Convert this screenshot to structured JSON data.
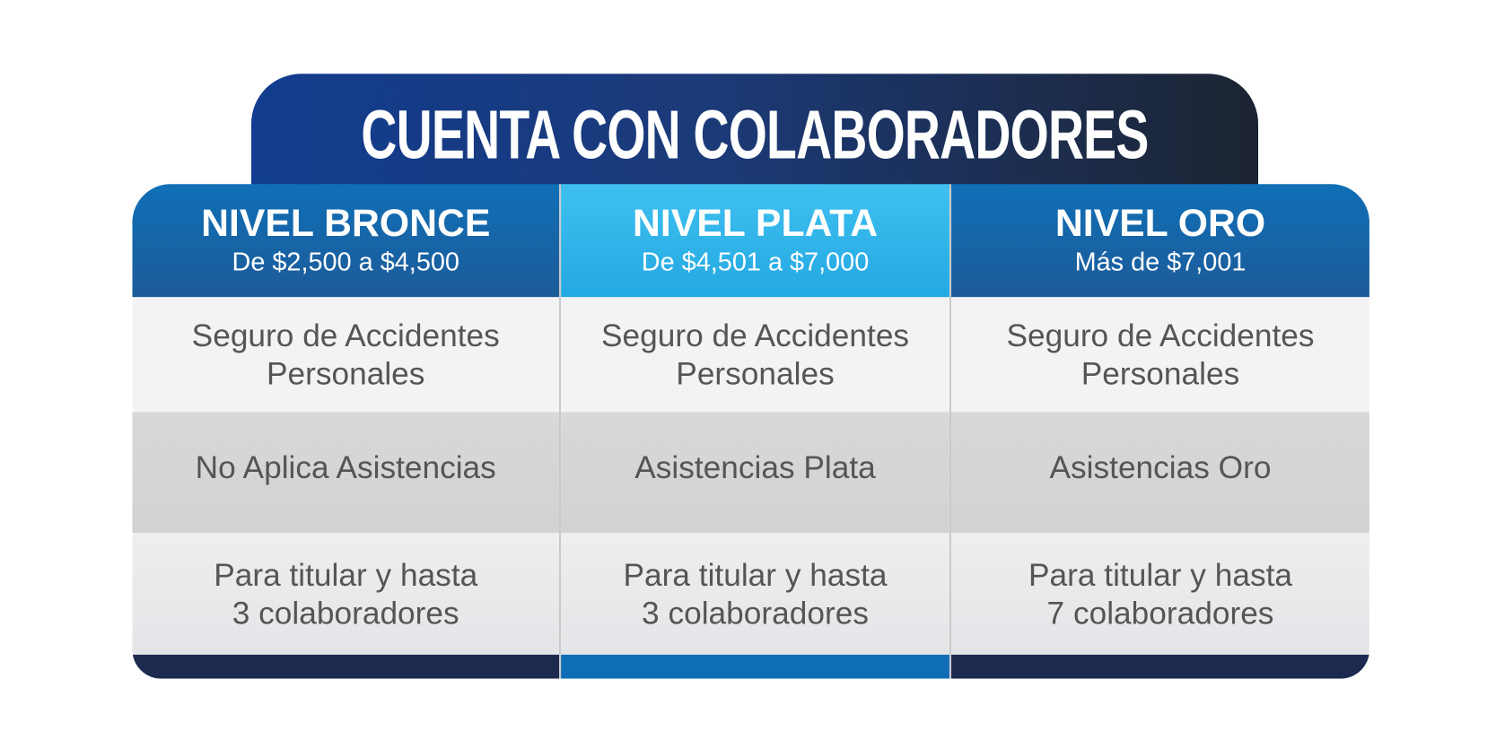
{
  "title": "CUENTA CON COLABORADORES",
  "colors": {
    "title_start": "#123c8e",
    "title_end": "#1c2432",
    "header_blue": "#0f6fb6",
    "header_plata": "#3fc0f1",
    "footer": "#1c2a50",
    "text": "#555555"
  },
  "levels": [
    {
      "name": "NIVEL BRONCE",
      "range": "De $2,500 a $4,500",
      "seguro": "Seguro de Accidentes Personales",
      "asistencias": "No Aplica Asistencias",
      "cobertura_1": "Para titular y hasta",
      "cobertura_2": "3 colaboradores"
    },
    {
      "name": "NIVEL PLATA",
      "range": "De $4,501 a $7,000",
      "seguro": "Seguro de Accidentes Personales",
      "asistencias": "Asistencias Plata",
      "cobertura_1": "Para titular y hasta",
      "cobertura_2": "3 colaboradores"
    },
    {
      "name": "NIVEL ORO",
      "range": "Más de $7,001",
      "seguro": "Seguro de Accidentes Personales",
      "asistencias": "Asistencias Oro",
      "cobertura_1": "Para titular y hasta",
      "cobertura_2": "7 colaboradores"
    }
  ]
}
